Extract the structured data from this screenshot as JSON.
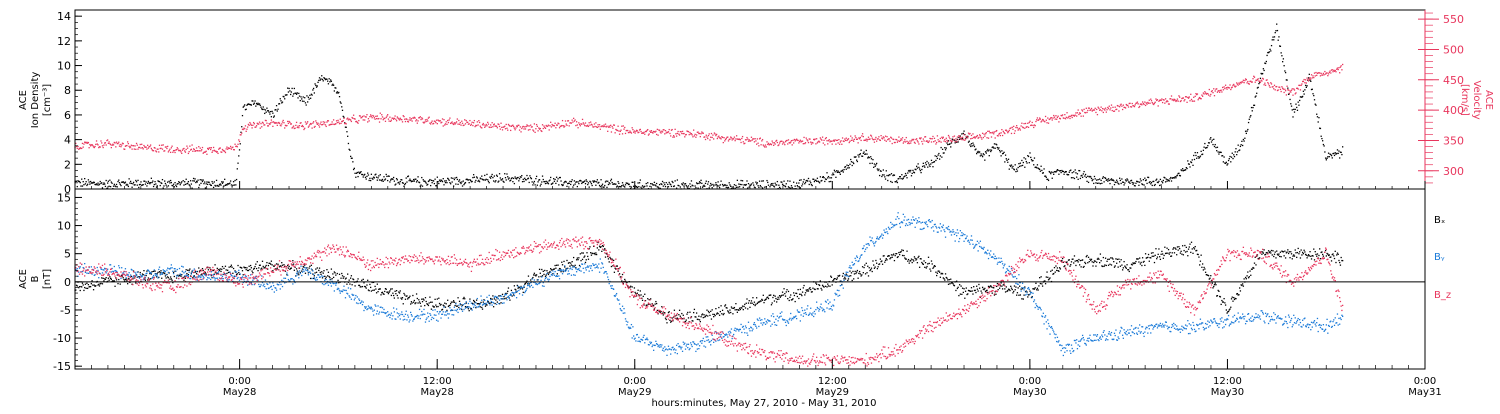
{
  "colors": {
    "axis": "#000000",
    "density": "#000000",
    "velocity": "#e8365d",
    "bx": "#000000",
    "by": "#1a7ad8",
    "bz": "#e8365d"
  },
  "chart_data": [
    {
      "type": "scatter",
      "panel": "top",
      "title": "",
      "xlabel": "hours:minutes, May 27, 2010 - May 31, 2010",
      "x_unit": "hours since 2010-05-27 00:00",
      "xlim": [
        14,
        96
      ],
      "x_ticks": [
        {
          "x": 24,
          "time": "0:00",
          "date": "May28"
        },
        {
          "x": 36,
          "time": "12:00",
          "date": "May28"
        },
        {
          "x": 48,
          "time": "0:00",
          "date": "May29"
        },
        {
          "x": 60,
          "time": "12:00",
          "date": "May29"
        },
        {
          "x": 72,
          "time": "0:00",
          "date": "May30"
        },
        {
          "x": 84,
          "time": "12:00",
          "date": "May30"
        },
        {
          "x": 96,
          "time": "0:00",
          "date": "May31"
        }
      ],
      "y_left": {
        "label_lines": [
          "ACE",
          "Ion Density",
          "[cm⁻³]"
        ],
        "ylim": [
          0,
          14.5
        ],
        "ticks": [
          0,
          2,
          4,
          6,
          8,
          10,
          12,
          14
        ]
      },
      "y_right": {
        "label_lines": [
          "ACE",
          "Velocity",
          "[km/s]"
        ],
        "ylim": [
          270,
          565
        ],
        "ticks": [
          300,
          350,
          400,
          450,
          500,
          550
        ]
      },
      "series": [
        {
          "axis": "left",
          "color": "#000000",
          "x": [
            14,
            16,
            18,
            20,
            22,
            23.8,
            24.2,
            25,
            26,
            27,
            28,
            29,
            30,
            31,
            32,
            34,
            36,
            38,
            40,
            42,
            44,
            46,
            48,
            50,
            52,
            54,
            56,
            58,
            60,
            61,
            62,
            63,
            64,
            65,
            66,
            67,
            68,
            69,
            70,
            71,
            72,
            73,
            74,
            76,
            78,
            80,
            81,
            82,
            83,
            84,
            85,
            86,
            87,
            88,
            89,
            90,
            91
          ],
          "y": [
            0.5,
            0.4,
            0.5,
            0.4,
            0.5,
            0.4,
            6.5,
            7,
            6,
            8,
            7,
            9,
            8,
            1.3,
            1.0,
            0.6,
            0.6,
            0.7,
            0.9,
            0.7,
            0.5,
            0.4,
            0.3,
            0.3,
            0.3,
            0.3,
            0.3,
            0.4,
            1.0,
            2.0,
            3.0,
            1.2,
            0.8,
            1.5,
            2.0,
            3.5,
            4.5,
            2.5,
            3.5,
            1.5,
            2.5,
            1.0,
            1.5,
            0.7,
            0.6,
            0.6,
            1.0,
            2.5,
            4.0,
            2.0,
            4.0,
            9.0,
            13.0,
            6.0,
            9.0,
            2.5,
            3.0
          ]
        },
        {
          "axis": "right",
          "color": "#e8365d",
          "x": [
            14,
            16,
            18,
            20,
            22,
            23.8,
            24.2,
            26,
            28,
            30,
            32,
            34,
            36,
            38,
            40,
            42,
            44,
            46,
            48,
            50,
            52,
            54,
            55,
            56,
            58,
            60,
            62,
            64,
            66,
            68,
            70,
            71,
            72,
            74,
            76,
            78,
            80,
            82,
            84,
            85,
            86,
            87,
            88,
            89,
            90,
            91
          ],
          "y": [
            340,
            345,
            338,
            336,
            334,
            338,
            372,
            378,
            375,
            380,
            388,
            386,
            382,
            378,
            372,
            370,
            380,
            373,
            364,
            364,
            360,
            352,
            350,
            345,
            348,
            350,
            355,
            350,
            350,
            353,
            362,
            368,
            378,
            390,
            400,
            408,
            415,
            420,
            438,
            448,
            450,
            435,
            430,
            455,
            462,
            470
          ]
        }
      ]
    },
    {
      "type": "scatter",
      "panel": "bottom",
      "title": "",
      "xlabel": "hours:minutes, May 27, 2010 - May 31, 2010",
      "x_unit": "hours since 2010-05-27 00:00",
      "xlim": [
        14,
        96
      ],
      "y_left": {
        "label_lines": [
          "ACE",
          "B",
          "[nT]"
        ],
        "ylim": [
          -15.5,
          16.5
        ],
        "ticks": [
          -15,
          -10,
          -5,
          0,
          5,
          10,
          15
        ]
      },
      "zero_line": true,
      "series": [
        {
          "name": "Bₓ",
          "color": "#000000",
          "x": [
            14,
            16,
            18,
            20,
            22,
            24,
            26,
            28,
            30,
            32,
            34,
            36,
            38,
            40,
            42,
            44,
            46,
            48,
            50,
            52,
            54,
            56,
            58,
            60,
            62,
            64,
            66,
            68,
            70,
            72,
            74,
            76,
            78,
            80,
            82,
            84,
            86,
            88,
            90,
            91
          ],
          "y": [
            -1,
            0,
            1,
            1,
            2,
            2,
            3,
            2,
            1,
            -1,
            -3,
            -4,
            -4,
            -3,
            1,
            3,
            6,
            -2,
            -6,
            -6,
            -5,
            -3,
            -2,
            0,
            2,
            5,
            3,
            -2,
            -1,
            -2,
            3,
            4,
            3,
            5,
            6,
            -5,
            5,
            5,
            5,
            4
          ]
        },
        {
          "name": "Bᵧ",
          "color": "#1a7ad8",
          "x": [
            14,
            16,
            18,
            20,
            22,
            24,
            26,
            28,
            30,
            32,
            34,
            36,
            38,
            40,
            42,
            44,
            46,
            48,
            50,
            52,
            54,
            56,
            58,
            60,
            61,
            62,
            64,
            66,
            68,
            70,
            72,
            74,
            76,
            78,
            80,
            82,
            84,
            86,
            88,
            90,
            91
          ],
          "y": [
            2,
            2,
            1,
            2,
            1,
            1,
            -1,
            2,
            -1,
            -5,
            -6,
            -6,
            -4,
            -3,
            0,
            2,
            3,
            -10,
            -12,
            -11,
            -9,
            -7,
            -6,
            -4,
            2,
            6,
            11,
            10,
            8,
            4,
            -2,
            -12,
            -10,
            -9,
            -8,
            -8,
            -7,
            -6,
            -7,
            -8,
            -6
          ]
        },
        {
          "name": "B_z",
          "color": "#e8365d",
          "x": [
            14,
            16,
            18,
            20,
            22,
            24,
            26,
            28,
            30,
            32,
            34,
            36,
            38,
            40,
            42,
            44,
            46,
            48,
            50,
            52,
            54,
            56,
            58,
            60,
            62,
            64,
            66,
            68,
            70,
            72,
            74,
            76,
            78,
            80,
            82,
            84,
            86,
            88,
            90,
            91
          ],
          "y": [
            2,
            2,
            0,
            -1,
            2,
            0,
            2,
            4,
            6,
            3,
            4,
            4,
            3,
            5,
            6,
            7,
            7,
            -3,
            -6,
            -8,
            -11,
            -13,
            -14,
            -14,
            -14,
            -12,
            -8,
            -5,
            -1,
            5,
            4,
            -5,
            0,
            1,
            -5,
            5,
            5,
            0,
            5,
            -5
          ]
        }
      ]
    }
  ]
}
